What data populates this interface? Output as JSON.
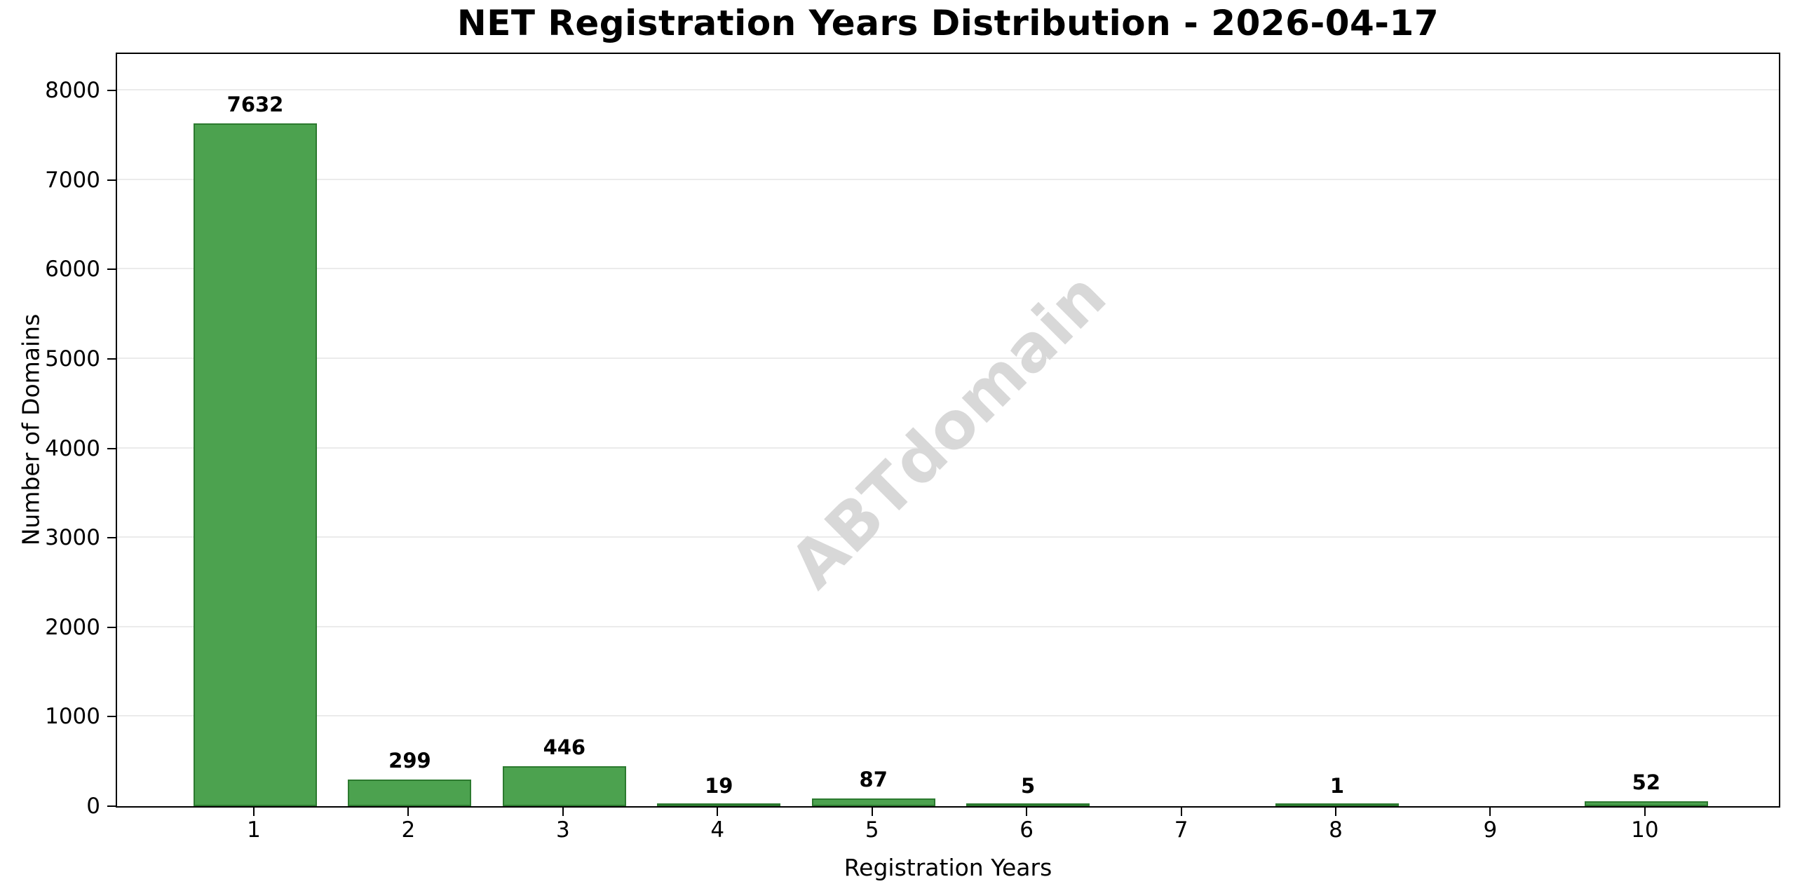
{
  "chart_data": {
    "type": "bar",
    "title": "NET Registration Years Distribution - 2026-04-17",
    "xlabel": "Registration Years",
    "ylabel": "Number of Domains",
    "categories": [
      "1",
      "2",
      "3",
      "4",
      "5",
      "6",
      "7",
      "8",
      "9",
      "10"
    ],
    "values": [
      7632,
      299,
      446,
      19,
      87,
      5,
      0,
      1,
      0,
      52
    ],
    "bar_labels": [
      "7632",
      "299",
      "446",
      "19",
      "87",
      "5",
      "",
      "1",
      "",
      "52"
    ],
    "yticks": [
      0,
      1000,
      2000,
      3000,
      4000,
      5000,
      6000,
      7000,
      8000
    ],
    "ylim": [
      0,
      8408
    ],
    "grid": "horizontal",
    "legend": "none",
    "watermark": "ABTdomain",
    "colors": {
      "bar_fill": "#4CA24F",
      "bar_edge": "#2C7A2F",
      "gridline": "#ebebeb",
      "spine": "#000000",
      "watermark": "#d8d8d8",
      "background": "#ffffff",
      "text": "#000000"
    }
  }
}
